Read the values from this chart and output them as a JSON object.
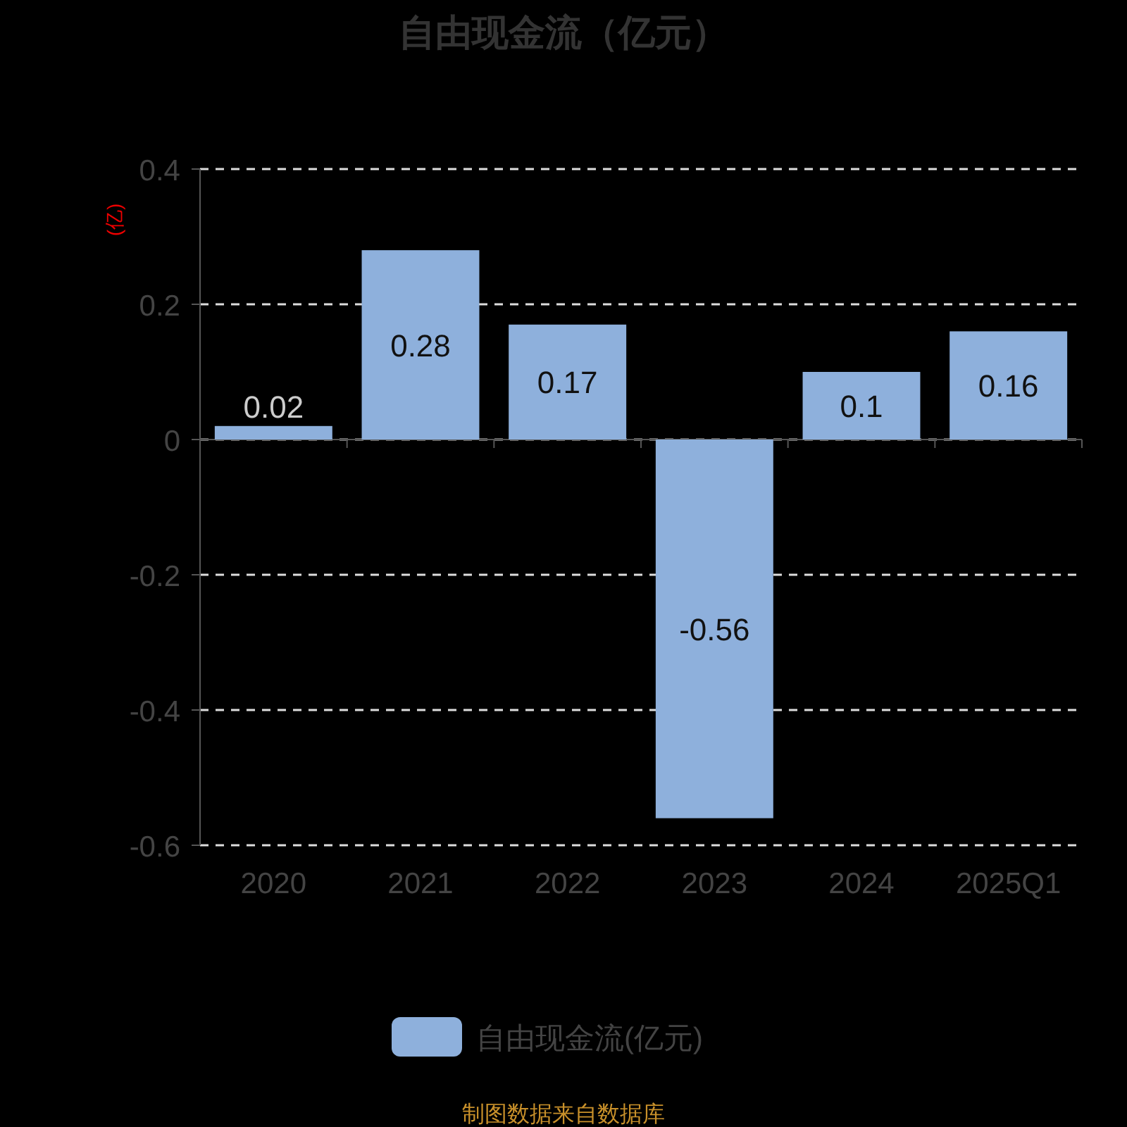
{
  "chart_data": {
    "type": "bar",
    "title": "自由现金流（亿元）",
    "ylabel": "(亿)",
    "categories": [
      "2020",
      "2021",
      "2022",
      "2023",
      "2024",
      "2025Q1"
    ],
    "series": [
      {
        "name": "自由现金流(亿元)",
        "color": "#8eb0dc",
        "values": [
          0.02,
          0.28,
          0.17,
          -0.56,
          0.1,
          0.16
        ]
      }
    ],
    "ylim": [
      -0.6,
      0.4
    ],
    "yticks": [
      -0.6,
      -0.4,
      -0.2,
      0,
      0.2,
      0.4
    ],
    "grid": "y",
    "legend": "bottom",
    "data_labels": true,
    "annotations": [
      "制图数据来自数据库"
    ]
  }
}
